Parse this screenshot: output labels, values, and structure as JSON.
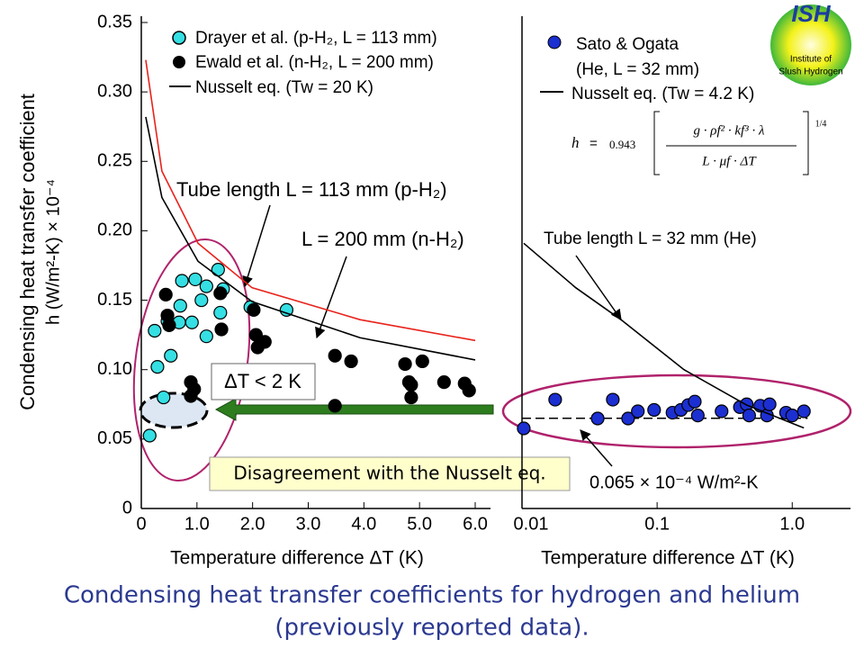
{
  "chart_data": [
    {
      "type": "scatter",
      "y_label": [
        "Condensing heat transfer coefficient",
        "h (W/m²-K) × 10⁻⁴"
      ],
      "x_label": "Temperature difference ΔT (K)",
      "xlim": [
        0,
        6
      ],
      "ylim": [
        0,
        0.35
      ],
      "xticks": [
        0,
        {
          "value": 1,
          "label": "1.0"
        },
        {
          "value": 2,
          "label": "2.0"
        },
        {
          "value": 3,
          "label": "3.0"
        },
        {
          "value": 4,
          "label": "4.0"
        },
        {
          "value": 5,
          "label": "5.0"
        },
        {
          "value": 6,
          "label": "6.0"
        }
      ],
      "yticks": [
        0,
        0.05,
        {
          "value": 0.1,
          "label": "0.10"
        },
        0.15,
        {
          "value": 0.2,
          "label": "0.20"
        },
        0.25,
        {
          "value": 0.3,
          "label": "0.30"
        },
        0.35
      ],
      "legend_line": "Nusselt eq.  (Tw = 20 K)",
      "annotations": [
        "ΔT < 2 K",
        "Disagreement with the Nusselt eq."
      ],
      "series": [
        {
          "name": "Drayer et al. (p-H₂, L = 113 mm)",
          "style": "marker",
          "color": "#35dfe3",
          "x": [
            0.15,
            0.29,
            0.24,
            0.4,
            0.53,
            0.47,
            0.68,
            0.91,
            0.7,
            0.73,
            0.97,
            1.08,
            1.17,
            1.17,
            1.38,
            1.42,
            1.47,
            1.96,
            2.61
          ],
          "values": [
            0.0525,
            0.102,
            0.128,
            0.08,
            0.11,
            0.135,
            0.134,
            0.134,
            0.146,
            0.164,
            0.165,
            0.15,
            0.16,
            0.124,
            0.172,
            0.141,
            0.158,
            0.145,
            0.143
          ]
        },
        {
          "name": "Ewald et al.  (n-H₂, L = 200 mm)",
          "style": "marker",
          "color": "#000000",
          "x": [
            0.44,
            0.47,
            0.5,
            1.42,
            1.44,
            0.89,
            0.95,
            0.89,
            2.02,
            2.06,
            2.09,
            2.22,
            3.48,
            3.77,
            3.48,
            4.74,
            5.05,
            4.81,
            4.85,
            4.85,
            5.44,
            5.81,
            5.89
          ],
          "values": [
            0.154,
            0.139,
            0.132,
            0.155,
            0.129,
            0.091,
            0.086,
            0.081,
            0.143,
            0.125,
            0.116,
            0.12,
            0.11,
            0.106,
            0.074,
            0.104,
            0.106,
            0.091,
            0.089,
            0.08,
            0.091,
            0.09,
            0.085
          ]
        },
        {
          "name": "Tube length L = 113 mm (p-H₂)",
          "style": "line",
          "color": "#e8221b",
          "x": [
            0.08,
            0.37,
            1.02,
            1.99,
            3.93,
            6.0
          ],
          "values": [
            0.323,
            0.243,
            0.191,
            0.159,
            0.136,
            0.121
          ]
        },
        {
          "name": "L = 200 mm (n-H₂)",
          "style": "line",
          "color": "#000000",
          "x": [
            0.08,
            0.37,
            1.02,
            1.99,
            3.93,
            6.0
          ],
          "values": [
            0.282,
            0.224,
            0.178,
            0.149,
            0.123,
            0.107
          ]
        }
      ]
    },
    {
      "type": "scatter",
      "xscale": "log",
      "x_label": "Temperature difference ΔT (K)",
      "xlim": [
        0.01,
        2.5
      ],
      "ylim": [
        0,
        0.35
      ],
      "xticks": [
        0.01,
        0.1,
        {
          "value": 1,
          "label": "1.0"
        }
      ],
      "legend_note": "(He, L = 32 mm)",
      "reference": {
        "value": 0.065,
        "label": "0.065 × 10⁻⁴ W/m²-K"
      },
      "formula": {
        "lhs": "h",
        "eq": "=",
        "coef": "0.943",
        "numerator": "g · ρf² · kf³ · λ",
        "denominator": "L · μf · ΔT",
        "exponent": "1/4"
      },
      "series": [
        {
          "name": "Sato & Ogata",
          "style": "marker",
          "color": "#1c2fd0",
          "x": [
            0.0103,
            0.0176,
            0.0363,
            0.047,
            0.061,
            0.072,
            0.095,
            0.13,
            0.15,
            0.17,
            0.19,
            0.2,
            0.3,
            0.41,
            0.46,
            0.48,
            0.58,
            0.65,
            0.68,
            0.9,
            1.0,
            1.22
          ],
          "values": [
            0.0577,
            0.0784,
            0.0648,
            0.0784,
            0.0648,
            0.07,
            0.071,
            0.069,
            0.071,
            0.0745,
            0.077,
            0.067,
            0.07,
            0.073,
            0.075,
            0.067,
            0.074,
            0.067,
            0.075,
            0.069,
            0.067,
            0.07
          ]
        },
        {
          "name": "Nusselt eq. (Tw = 4.2 K)",
          "style": "line",
          "color": "#000000",
          "x": [
            0.0103,
            0.025,
            0.054,
            0.158,
            0.46,
            1.22
          ],
          "values": [
            0.191,
            0.159,
            0.136,
            0.1,
            0.0745,
            0.058
          ]
        }
      ],
      "annotations": [
        "Tube length L = 32 mm (He)"
      ]
    }
  ],
  "logo": {
    "title": "ISH",
    "lines": [
      "Institute of",
      "Slush Hydrogen"
    ]
  },
  "caption": [
    "Condensing heat transfer coefficients for hydrogen and helium",
    "(previously reported data)."
  ]
}
